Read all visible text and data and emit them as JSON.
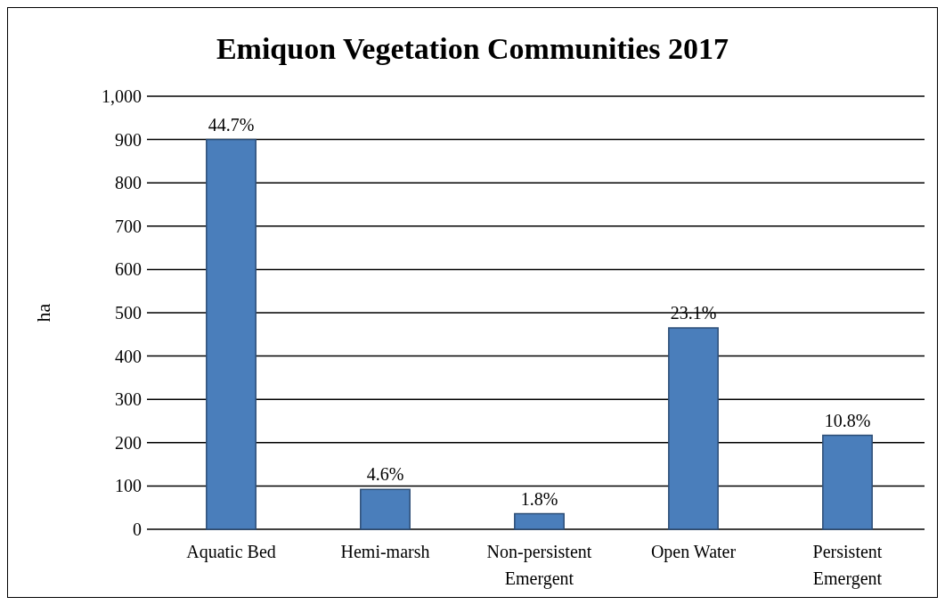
{
  "chart_data": {
    "type": "bar",
    "title": "Emiquon Vegetation Communities 2017",
    "ylabel": "ha",
    "categories": [
      "Aquatic Bed",
      "Hemi-marsh",
      "Non-persistent Emergent",
      "Open Water",
      "Persistent Emergent"
    ],
    "values": [
      900,
      92,
      36,
      465,
      217
    ],
    "annotations": [
      {
        "text": "44.7%",
        "x": "Aquatic Bed",
        "y": 900
      },
      {
        "text": "4.6%",
        "x": "Hemi-marsh",
        "y": 92
      },
      {
        "text": "1.8%",
        "x": "Non-persistent Emergent",
        "y": 36
      },
      {
        "text": "23.1%",
        "x": "Open Water",
        "y": 465
      },
      {
        "text": "10.8%",
        "x": "Persistent Emergent",
        "y": 217
      }
    ],
    "color": "#4a7ebb",
    "ylim": [
      0,
      1000
    ],
    "yticks": [
      {
        "value": 0,
        "label": "0"
      },
      {
        "value": 100,
        "label": "100"
      },
      {
        "value": 200,
        "label": "200"
      },
      {
        "value": 300,
        "label": "300"
      },
      {
        "value": 400,
        "label": "400"
      },
      {
        "value": 500,
        "label": "500"
      },
      {
        "value": 600,
        "label": "600"
      },
      {
        "value": 700,
        "label": "700"
      },
      {
        "value": 800,
        "label": "800"
      },
      {
        "value": 900,
        "label": "900"
      },
      {
        "value": 1000,
        "label": "1,000"
      }
    ],
    "grid": "y"
  }
}
